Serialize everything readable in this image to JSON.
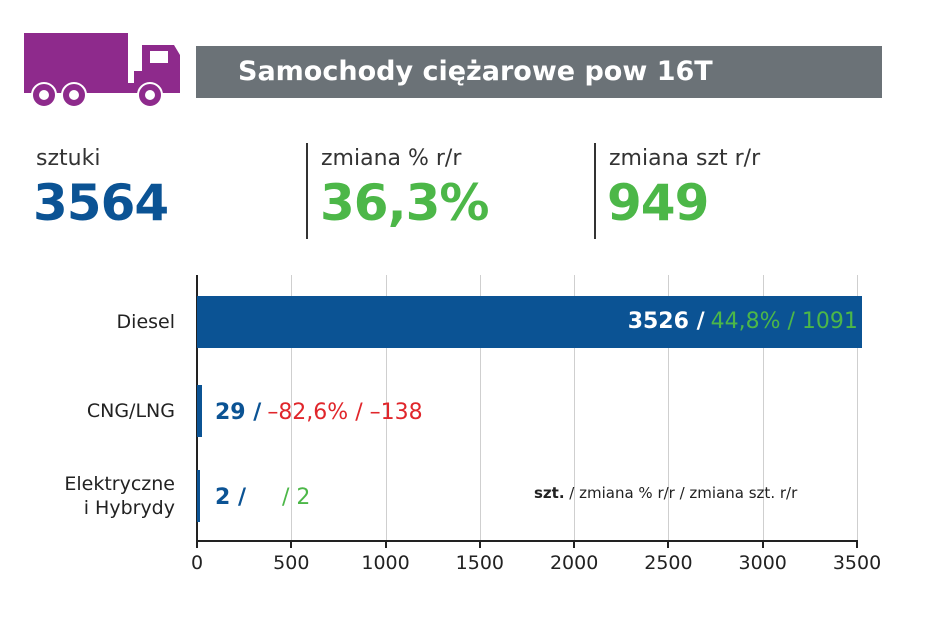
{
  "header": {
    "title": "Samochody ciężarowe pow 16T",
    "icon": "truck-icon"
  },
  "kpis": [
    {
      "label": "sztuki",
      "value": "3564",
      "color": "#0b5394"
    },
    {
      "label": "zmiana % r/r",
      "value": "36,3%",
      "color": "#4cb748"
    },
    {
      "label": "zmiana szt r/r",
      "value": "949",
      "color": "#4cb748"
    }
  ],
  "chart_data": {
    "type": "bar",
    "orientation": "horizontal",
    "categories": [
      "Diesel",
      "CNG/LNG",
      "Elektryczne i Hybrydy"
    ],
    "category_lines": [
      [
        "Diesel"
      ],
      [
        "CNG/LNG"
      ],
      [
        "Elektryczne",
        "i Hybrydy"
      ]
    ],
    "values": [
      3526,
      29,
      2
    ],
    "pct_change": [
      "44,8%",
      "–82,6%",
      ""
    ],
    "abs_change": [
      "1091",
      "–138",
      "2"
    ],
    "label_parts": [
      {
        "units": "3526 /",
        "rest": "44,8% / 1091",
        "rest_color": "#4cb748"
      },
      {
        "units": "29 /",
        "rest": "–82,6% / –138",
        "rest_color": "#e0262b"
      },
      {
        "units": "2 /",
        "rest": "/ 2",
        "rest_color": "#4cb748"
      }
    ],
    "xlim": [
      0,
      3500
    ],
    "xticks": [
      "0",
      "500",
      "1000",
      "1500",
      "2000",
      "2500",
      "3000",
      "3500"
    ],
    "grid": true,
    "bar_color": "#0b5394",
    "legend": {
      "bold": "szt.",
      "text": " / zmiana % r/r / zmiana szt. r/r",
      "placement": "bottom-right"
    }
  }
}
